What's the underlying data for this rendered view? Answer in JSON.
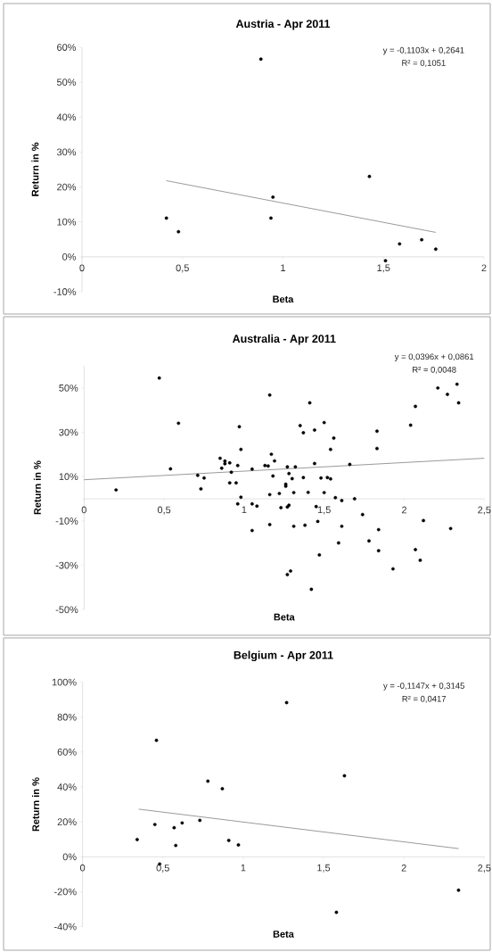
{
  "chart_data": [
    {
      "type": "scatter",
      "title": "Austria - Apr 2011",
      "xlabel": "Beta",
      "ylabel": "Return in %",
      "marker": "circle",
      "annotations": [
        "y = -0,1103x + 0,2641",
        "R² = 0,1051"
      ],
      "xlim": [
        0,
        2
      ],
      "xticks": [
        0,
        {
          "value": 0.5,
          "label": "0,5"
        },
        1,
        {
          "value": 1.5,
          "label": "1,5"
        },
        2
      ],
      "ylim": [
        -10,
        60
      ],
      "yticks": [
        {
          "value": -10,
          "label": "-10%"
        },
        {
          "value": 0,
          "label": "0%"
        },
        {
          "value": 10,
          "label": "10%"
        },
        {
          "value": 20,
          "label": "20%"
        },
        {
          "value": 30,
          "label": "30%"
        },
        {
          "value": 40,
          "label": "40%"
        },
        {
          "value": 50,
          "label": "50%"
        },
        {
          "value": 60,
          "label": "60%"
        }
      ],
      "series": [
        {
          "type": "scatter",
          "color": "#000000",
          "x": [
            0.42,
            0.48,
            0.89,
            0.94,
            0.95,
            1.43,
            1.51,
            1.58,
            1.69,
            1.76
          ],
          "values": [
            11.1,
            7.2,
            56.6,
            11.1,
            17.1,
            23.0,
            -1.1,
            3.7,
            4.9,
            2.2
          ]
        },
        {
          "type": "line",
          "color": "#808080",
          "marker": "none",
          "x": [
            0.42,
            1.76
          ],
          "values": [
            21.8,
            7.0
          ]
        }
      ]
    },
    {
      "type": "scatter",
      "title": "Australia - Apr 2011",
      "xlabel": "Beta",
      "ylabel": "Return in %",
      "marker": "circle",
      "annotations": [
        "y = 0,0396x + 0,0861",
        "R² = 0,0048"
      ],
      "xlim": [
        0,
        2.5
      ],
      "xticks": [
        0,
        {
          "value": 0.5,
          "label": "0,5"
        },
        1,
        {
          "value": 1.5,
          "label": "1,5"
        },
        2,
        {
          "value": 2.5,
          "label": "2,5"
        }
      ],
      "ylim": [
        -50,
        60
      ],
      "yticks": [
        {
          "value": -50,
          "label": "-50%"
        },
        {
          "value": -30,
          "label": "-30%"
        },
        {
          "value": -10,
          "label": "-10%"
        },
        {
          "value": 10,
          "label": "10%"
        },
        {
          "value": 30,
          "label": "30%"
        },
        {
          "value": 50,
          "label": "50%"
        }
      ],
      "series": [
        {
          "type": "scatter",
          "color": "#000000",
          "x": [
            0.2,
            0.47,
            0.54,
            0.59,
            0.71,
            0.73,
            0.75,
            0.85,
            0.86,
            0.88,
            0.88,
            0.91,
            0.92,
            0.91,
            0.95,
            0.96,
            0.97,
            0.98,
            0.98,
            0.96,
            1.05,
            1.08,
            1.05,
            1.05,
            1.13,
            1.16,
            1.15,
            1.17,
            1.19,
            1.18,
            1.16,
            1.16,
            1.22,
            1.23,
            1.27,
            1.32,
            1.28,
            1.3,
            1.26,
            1.26,
            1.27,
            1.28,
            1.31,
            1.31,
            1.27,
            1.29,
            1.35,
            1.37,
            1.37,
            1.38,
            1.4,
            1.41,
            1.44,
            1.44,
            1.45,
            1.46,
            1.42,
            1.47,
            1.48,
            1.5,
            1.5,
            1.52,
            1.54,
            1.54,
            1.56,
            1.57,
            1.59,
            1.61,
            1.61,
            1.66,
            1.69,
            1.74,
            1.78,
            1.83,
            1.83,
            1.84,
            1.84,
            1.93,
            2.04,
            2.07,
            2.07,
            2.1,
            2.12,
            2.21,
            2.27,
            2.33,
            2.34,
            2.29
          ],
          "values": [
            4.0,
            54.5,
            13.5,
            34.1,
            10.6,
            4.5,
            9.4,
            18.3,
            13.8,
            17.0,
            15.8,
            16.2,
            12.0,
            7.2,
            7.2,
            15.0,
            32.5,
            22.3,
            0.7,
            -2.3,
            -2.3,
            -3.3,
            13.4,
            -14.3,
            15.0,
            46.8,
            14.8,
            20.1,
            17.1,
            10.3,
            1.9,
            -11.6,
            2.4,
            -4.0,
            14.4,
            14.4,
            11.4,
            9.1,
            6.6,
            5.7,
            -3.7,
            -2.9,
            2.8,
            -12.4,
            -34.2,
            -32.6,
            33.0,
            29.8,
            9.6,
            -11.9,
            2.9,
            43.3,
            31.0,
            15.9,
            -3.5,
            -10.2,
            -40.8,
            -25.3,
            9.4,
            34.4,
            2.8,
            9.6,
            9.0,
            22.3,
            27.4,
            0.5,
            -19.9,
            -0.8,
            -12.4,
            15.5,
            0.0,
            -7.1,
            -19.0,
            30.5,
            22.7,
            -13.9,
            -23.4,
            -31.6,
            33.2,
            41.7,
            -22.9,
            -27.7,
            -9.8,
            50.0,
            47.1,
            51.7,
            43.3,
            -13.4
          ]
        },
        {
          "type": "line",
          "color": "#808080",
          "marker": "none",
          "x": [
            0,
            2.5
          ],
          "values": [
            8.6,
            18.3
          ]
        }
      ]
    },
    {
      "type": "scatter",
      "title": "Belgium - Apr 2011",
      "xlabel": "Beta",
      "ylabel": "Return in %",
      "marker": "circle",
      "annotations": [
        "y = -0,1147x + 0,3145",
        "R² = 0,0417"
      ],
      "xlim": [
        0,
        2.5
      ],
      "xticks": [
        0,
        {
          "value": 0.5,
          "label": "0,5"
        },
        1,
        {
          "value": 1.5,
          "label": "1,5"
        },
        2,
        {
          "value": 2.5,
          "label": "2,5"
        }
      ],
      "ylim": [
        -40,
        100
      ],
      "yticks": [
        {
          "value": -40,
          "label": "-40%"
        },
        {
          "value": -20,
          "label": "-20%"
        },
        {
          "value": 0,
          "label": "0%"
        },
        {
          "value": 20,
          "label": "20%"
        },
        {
          "value": 40,
          "label": "40%"
        },
        {
          "value": 60,
          "label": "60%"
        },
        {
          "value": 80,
          "label": "80%"
        },
        {
          "value": 100,
          "label": "100%"
        }
      ],
      "series": [
        {
          "type": "scatter",
          "color": "#000000",
          "x": [
            0.34,
            0.45,
            0.46,
            0.48,
            0.57,
            0.58,
            0.62,
            0.73,
            0.78,
            0.87,
            0.91,
            0.97,
            1.27,
            1.58,
            1.63,
            2.34
          ],
          "values": [
            9.9,
            18.5,
            66.7,
            -4.1,
            16.7,
            6.5,
            19.4,
            20.9,
            43.3,
            39.0,
            9.4,
            6.8,
            88.3,
            -31.8,
            46.4,
            -19.1
          ]
        },
        {
          "type": "line",
          "color": "#808080",
          "marker": "none",
          "x": [
            0.35,
            2.34
          ],
          "values": [
            27.3,
            4.7
          ]
        }
      ]
    }
  ]
}
